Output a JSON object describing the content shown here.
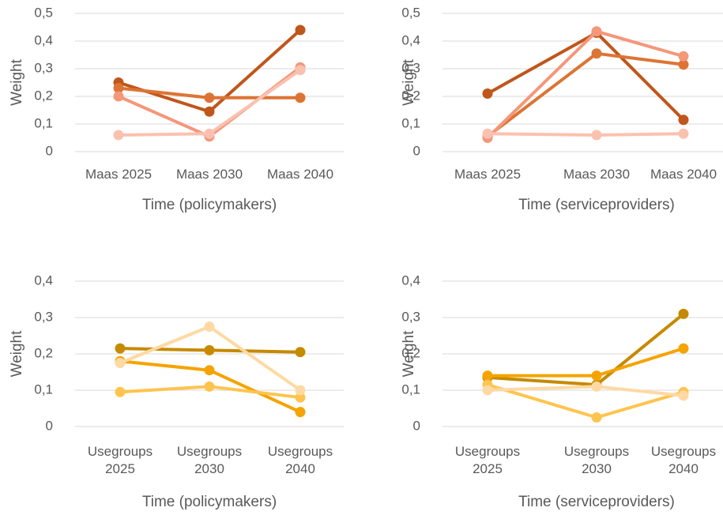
{
  "chart_data": [
    {
      "type": "line",
      "ylabel": "Weight",
      "xlabel": "Time (policymakers)",
      "categories": [
        "Maas 2025",
        "Maas 2030",
        "Maas 2040"
      ],
      "ylim": [
        0,
        0.5
      ],
      "yticks": [
        0,
        {
          "value": 0.1,
          "label": "0,1"
        },
        {
          "value": 0.2,
          "label": "0,2"
        },
        {
          "value": 0.3,
          "label": "0,3"
        },
        {
          "value": 0.4,
          "label": "0,4"
        },
        {
          "value": 0.5,
          "label": "0,5"
        }
      ],
      "grid": true,
      "series": [
        {
          "color": "#c0561b",
          "values": [
            0.25,
            0.145,
            0.44
          ]
        },
        {
          "color": "#dd7434",
          "values": [
            0.23,
            0.195,
            0.195
          ]
        },
        {
          "color": "#f4977a",
          "values": [
            0.2,
            0.055,
            0.305
          ]
        },
        {
          "color": "#fbc1b0",
          "values": [
            0.06,
            0.065,
            0.295
          ]
        }
      ]
    },
    {
      "type": "line",
      "ylabel": "Weight",
      "xlabel": "Time (serviceproviders)",
      "categories": [
        "Maas 2025",
        "Maas 2030",
        "Maas 2040"
      ],
      "ylim": [
        0,
        0.5
      ],
      "yticks": [
        0,
        {
          "value": 0.1,
          "label": "0,1"
        },
        {
          "value": 0.2,
          "label": "0,2"
        },
        {
          "value": 0.3,
          "label": "0,3"
        },
        {
          "value": 0.4,
          "label": "0,4"
        },
        {
          "value": 0.5,
          "label": "0,5"
        }
      ],
      "grid": true,
      "series": [
        {
          "color": "#c0561b",
          "values": [
            0.21,
            0.43,
            0.115
          ]
        },
        {
          "color": "#dd7434",
          "values": [
            0.055,
            0.355,
            0.315
          ]
        },
        {
          "color": "#f4977a",
          "values": [
            0.05,
            0.435,
            0.345
          ]
        },
        {
          "color": "#fbc1b0",
          "values": [
            0.065,
            0.06,
            0.065
          ]
        }
      ]
    },
    {
      "type": "line",
      "ylabel": "Weight",
      "xlabel": "Time (policymakers)",
      "categories": [
        "Usegroups 2025",
        "Usegroups 2030",
        "Usegroups 2040"
      ],
      "ylim": [
        0,
        0.4
      ],
      "yticks": [
        0,
        {
          "value": 0.1,
          "label": "0,1"
        },
        {
          "value": 0.2,
          "label": "0,2"
        },
        {
          "value": 0.3,
          "label": "0,3"
        },
        {
          "value": 0.4,
          "label": "0,4"
        }
      ],
      "grid": true,
      "series": [
        {
          "color": "#c68a00",
          "values": [
            0.215,
            0.21,
            0.205
          ]
        },
        {
          "color": "#f5a300",
          "values": [
            0.18,
            0.155,
            0.04
          ]
        },
        {
          "color": "#ffc44f",
          "values": [
            0.095,
            0.11,
            0.08
          ]
        },
        {
          "color": "#ffd9a3",
          "values": [
            0.175,
            0.275,
            0.1
          ]
        }
      ]
    },
    {
      "type": "line",
      "ylabel": "Weight",
      "xlabel": "Time (serviceproviders)",
      "categories": [
        "Usegroups 2025",
        "Usegroups 2030",
        "Usegroups 2040"
      ],
      "ylim": [
        0,
        0.4
      ],
      "yticks": [
        0,
        {
          "value": 0.1,
          "label": "0,1"
        },
        {
          "value": 0.2,
          "label": "0,2"
        },
        {
          "value": 0.3,
          "label": "0,3"
        },
        {
          "value": 0.4,
          "label": "0,4"
        }
      ],
      "grid": true,
      "series": [
        {
          "color": "#c68a00",
          "values": [
            0.135,
            0.115,
            0.31
          ]
        },
        {
          "color": "#f5a300",
          "values": [
            0.14,
            0.14,
            0.215
          ]
        },
        {
          "color": "#ffc44f",
          "values": [
            0.115,
            0.025,
            0.095
          ]
        },
        {
          "color": "#ffd9a3",
          "values": [
            0.1,
            0.11,
            0.085
          ]
        }
      ]
    }
  ]
}
